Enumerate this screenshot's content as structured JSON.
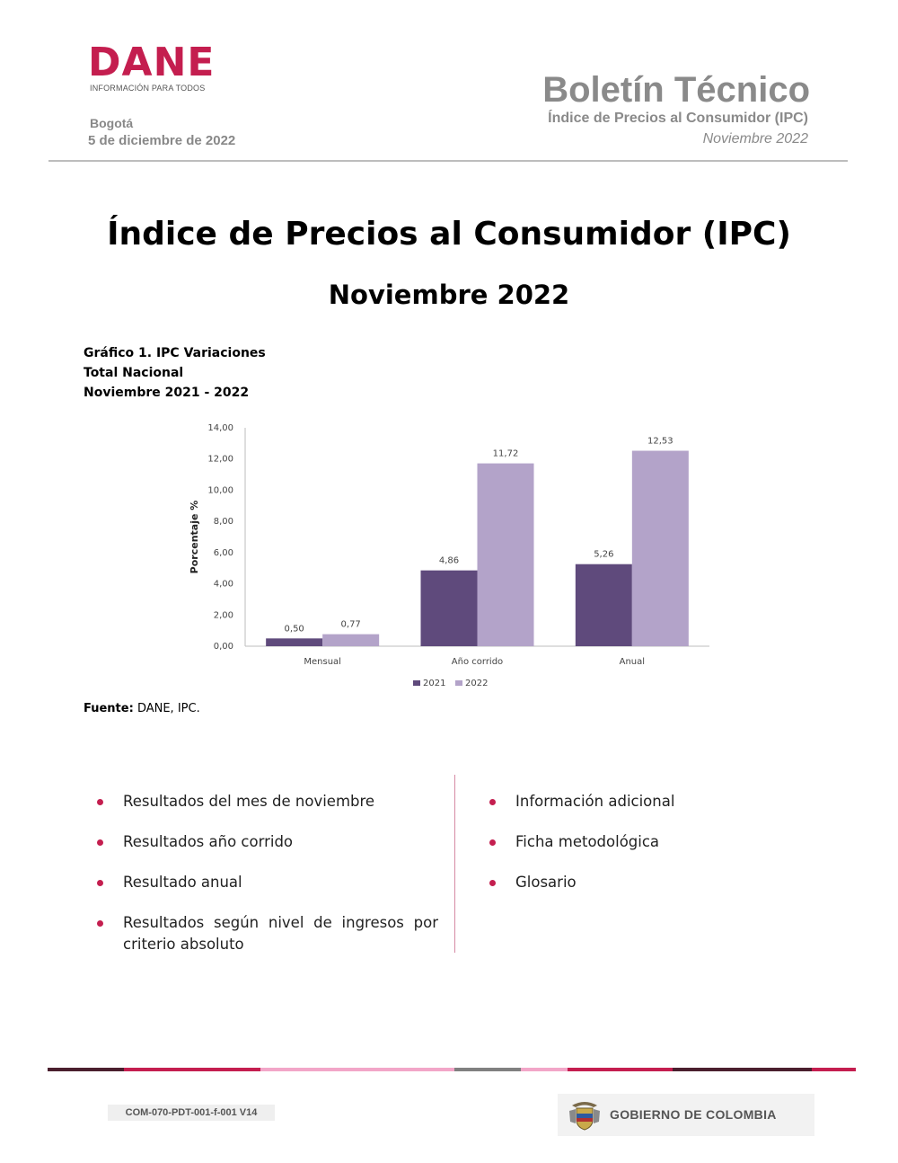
{
  "header": {
    "logo_text": "DANE",
    "logo_tagline": "INFORMACIÓN PARA TODOS",
    "city": "Bogotá",
    "date": "5 de diciembre de 2022",
    "bulletin_title": "Boletín Técnico",
    "bulletin_subtitle": "Índice de Precios al Consumidor (IPC)",
    "bulletin_period": "Noviembre 2022"
  },
  "document": {
    "title": "Índice de Precios al Consumidor (IPC)",
    "subtitle": "Noviembre 2022"
  },
  "chart_caption": {
    "line1": "Gráfico 1. IPC Variaciones",
    "line2": "Total Nacional",
    "line3": "Noviembre 2021 - 2022"
  },
  "chart_data": {
    "type": "bar",
    "categories": [
      "Mensual",
      "Año corrido",
      "Anual"
    ],
    "series": [
      {
        "name": "2021",
        "values": [
          0.5,
          4.86,
          5.26
        ],
        "labels": [
          "0,50",
          "4,86",
          "5,26"
        ],
        "color": "#5f4a7c"
      },
      {
        "name": "2022",
        "values": [
          0.77,
          11.72,
          12.53
        ],
        "labels": [
          "0,77",
          "11,72",
          "12,53"
        ],
        "color": "#b3a3c9"
      }
    ],
    "ylabel": "Porcentaje %",
    "ylim": [
      0,
      14
    ],
    "yticks": [
      "0,00",
      "2,00",
      "4,00",
      "6,00",
      "8,00",
      "10,00",
      "12,00",
      "14,00"
    ],
    "grid": false,
    "legend_position": "bottom-center"
  },
  "source": {
    "label": "Fuente:",
    "text": "DANE, IPC."
  },
  "contents": {
    "left": [
      "Resultados del mes de noviembre",
      "Resultados año corrido",
      "Resultado anual",
      "Resultados según nivel de ingresos por criterio absoluto"
    ],
    "right": [
      "Información adicional",
      "Ficha metodológica",
      "Glosario"
    ],
    "bullet_color": "#c41e4f"
  },
  "footer": {
    "doc_code": "COM-070-PDT-001-f-001 V14",
    "government": "GOBIERNO DE COLOMBIA",
    "bar_colors": [
      "#4a1f2e",
      "#c41e4f",
      "#f2a6c8",
      "#808080",
      "#f2a6c8",
      "#c41e4f",
      "#4a1f2e",
      "#c41e4f"
    ]
  }
}
